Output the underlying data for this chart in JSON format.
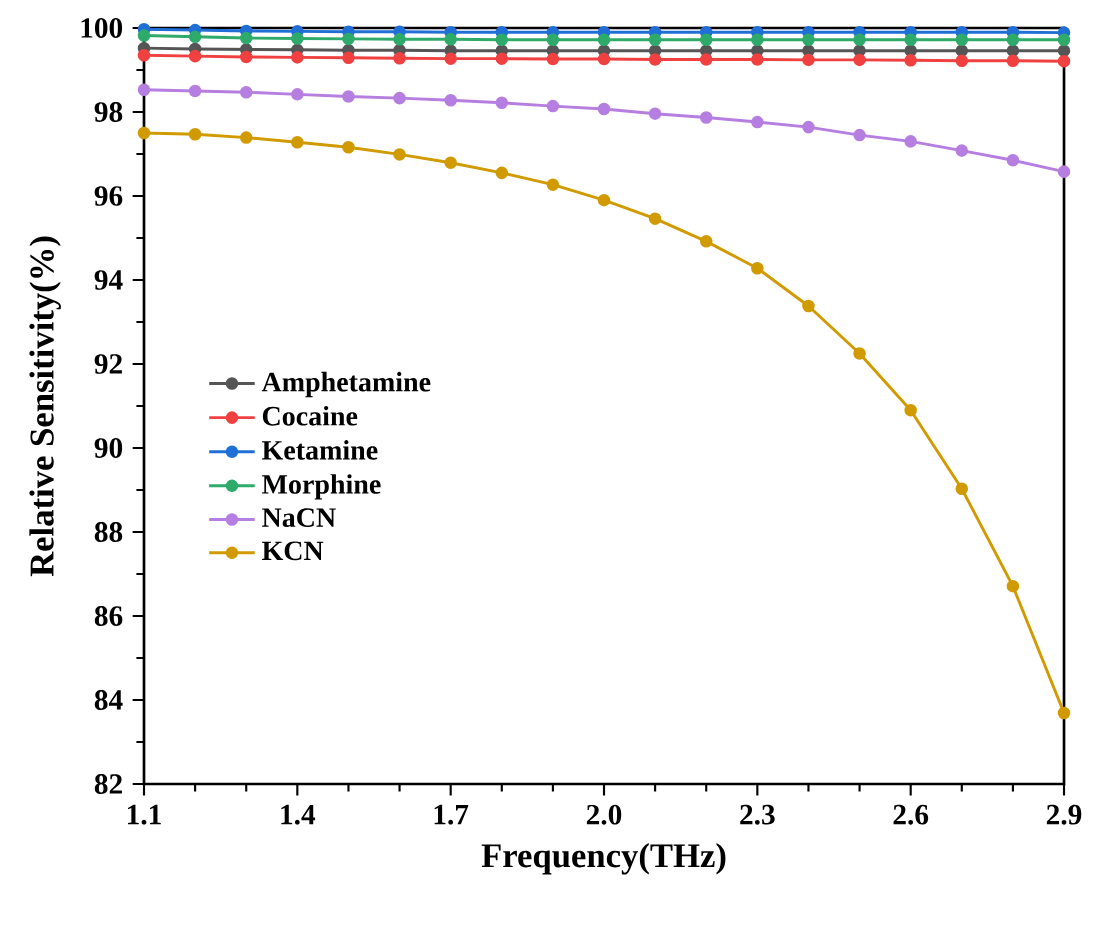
{
  "chart_data": {
    "type": "line",
    "xlabel": "Frequency(THz)",
    "ylabel": "Relative Sensitivity(%)",
    "x": [
      1.1,
      1.2,
      1.3,
      1.4,
      1.5,
      1.6,
      1.7,
      1.8,
      1.9,
      2.0,
      2.1,
      2.2,
      2.3,
      2.4,
      2.5,
      2.6,
      2.7,
      2.8,
      2.9
    ],
    "series": [
      {
        "name": "Amphetamine",
        "color": "#555555",
        "values": [
          99.52,
          99.5,
          99.49,
          99.48,
          99.47,
          99.47,
          99.46,
          99.46,
          99.46,
          99.46,
          99.46,
          99.46,
          99.46,
          99.46,
          99.46,
          99.46,
          99.46,
          99.46,
          99.46
        ]
      },
      {
        "name": "Cocaine",
        "color": "#f04040",
        "values": [
          99.35,
          99.33,
          99.31,
          99.3,
          99.29,
          99.28,
          99.27,
          99.27,
          99.26,
          99.26,
          99.25,
          99.25,
          99.25,
          99.24,
          99.24,
          99.23,
          99.22,
          99.22,
          99.21
        ]
      },
      {
        "name": "Ketamine",
        "color": "#1f6fd6",
        "values": [
          99.97,
          99.95,
          99.93,
          99.92,
          99.91,
          99.91,
          99.9,
          99.9,
          99.9,
          99.9,
          99.9,
          99.9,
          99.9,
          99.9,
          99.9,
          99.9,
          99.9,
          99.9,
          99.89
        ]
      },
      {
        "name": "Morphine",
        "color": "#2eaa6a",
        "values": [
          99.82,
          99.79,
          99.76,
          99.75,
          99.74,
          99.73,
          99.73,
          99.72,
          99.72,
          99.72,
          99.72,
          99.72,
          99.72,
          99.72,
          99.72,
          99.72,
          99.72,
          99.72,
          99.72
        ]
      },
      {
        "name": "NaCN",
        "color": "#b57ee0",
        "values": [
          98.53,
          98.5,
          98.47,
          98.42,
          98.37,
          98.33,
          98.28,
          98.22,
          98.14,
          98.07,
          97.96,
          97.87,
          97.76,
          97.64,
          97.45,
          97.3,
          97.08,
          96.85,
          96.58
        ]
      },
      {
        "name": "KCN",
        "color": "#d09a00",
        "values": [
          97.5,
          97.47,
          97.39,
          97.28,
          97.16,
          96.99,
          96.79,
          96.55,
          96.27,
          95.9,
          95.46,
          94.92,
          94.28,
          93.38,
          92.25,
          90.9,
          89.03,
          86.71,
          83.69
        ]
      }
    ],
    "xlim": [
      1.1,
      2.9
    ],
    "ylim": [
      82,
      100
    ],
    "xticks": [
      1.1,
      1.4,
      1.7,
      {
        "value": 2.0,
        "label": "2.0"
      },
      2.3,
      2.6,
      2.9
    ],
    "yticks": [
      82,
      84,
      86,
      88,
      90,
      92,
      94,
      96,
      98,
      100
    ],
    "grid": false,
    "legend": "left",
    "marker": "circle",
    "line_style": "solid"
  }
}
